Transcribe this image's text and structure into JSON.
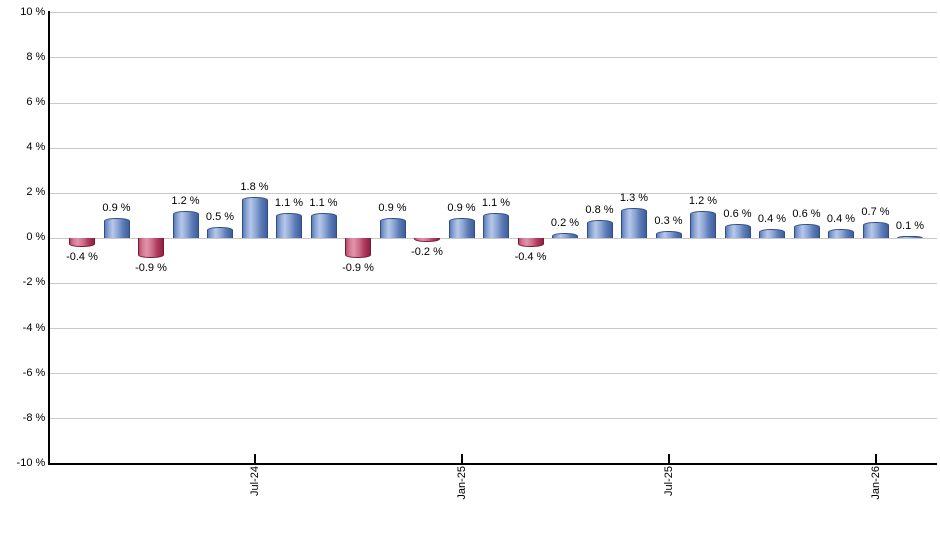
{
  "chart_data": {
    "type": "bar",
    "title": "",
    "xlabel": "",
    "ylabel": "",
    "ylim": [
      -10,
      10
    ],
    "ytick_step": 2,
    "grid": "horizontal",
    "legend": "none",
    "yticks": [
      {
        "value": 10,
        "label": "10 %"
      },
      {
        "value": 8,
        "label": "8 %"
      },
      {
        "value": 6,
        "label": "6 %"
      },
      {
        "value": 4,
        "label": "4 %"
      },
      {
        "value": 2,
        "label": "2 %"
      },
      {
        "value": 0,
        "label": "0 %"
      },
      {
        "value": -2,
        "label": "-2 %"
      },
      {
        "value": -4,
        "label": "-4 %"
      },
      {
        "value": -6,
        "label": "-6 %"
      },
      {
        "value": -8,
        "label": "-8 %"
      },
      {
        "value": -10,
        "label": "-10 %"
      }
    ],
    "xticks": [
      {
        "bar_index": 5,
        "label": "Jul-24"
      },
      {
        "bar_index": 11,
        "label": "Jan-25"
      },
      {
        "bar_index": 17,
        "label": "Jul-25"
      },
      {
        "bar_index": 23,
        "label": "Jan-26"
      }
    ],
    "bars": [
      {
        "value": -0.4,
        "label": "-0.4 %"
      },
      {
        "value": 0.9,
        "label": "0.9 %"
      },
      {
        "value": -0.9,
        "label": "-0.9 %"
      },
      {
        "value": 1.2,
        "label": "1.2 %"
      },
      {
        "value": 0.5,
        "label": "0.5 %"
      },
      {
        "value": 1.8,
        "label": "1.8 %"
      },
      {
        "value": 1.1,
        "label": "1.1 %"
      },
      {
        "value": 1.1,
        "label": "1.1 %"
      },
      {
        "value": -0.9,
        "label": "-0.9 %"
      },
      {
        "value": 0.9,
        "label": "0.9 %"
      },
      {
        "value": -0.2,
        "label": "-0.2 %"
      },
      {
        "value": 0.9,
        "label": "0.9 %"
      },
      {
        "value": 1.1,
        "label": "1.1 %"
      },
      {
        "value": -0.4,
        "label": "-0.4 %"
      },
      {
        "value": 0.2,
        "label": "0.2 %"
      },
      {
        "value": 0.8,
        "label": "0.8 %"
      },
      {
        "value": 1.3,
        "label": "1.3 %"
      },
      {
        "value": 0.3,
        "label": "0.3 %"
      },
      {
        "value": 1.2,
        "label": "1.2 %"
      },
      {
        "value": 0.6,
        "label": "0.6 %"
      },
      {
        "value": 0.4,
        "label": "0.4 %"
      },
      {
        "value": 0.6,
        "label": "0.6 %"
      },
      {
        "value": 0.4,
        "label": "0.4 %"
      },
      {
        "value": 0.7,
        "label": "0.7 %"
      },
      {
        "value": 0.1,
        "label": "0.1 %"
      }
    ],
    "colors": {
      "positive_border": "#314d82",
      "positive_gradient": [
        "#5c7eba",
        "#8ba6d6",
        "#b6c8ea",
        "#8aa3d2",
        "#5c7cb8",
        "#3e5f9d"
      ],
      "negative_border": "#771c38",
      "negative_gradient": [
        "#bb4a68",
        "#d47a93",
        "#e095ab",
        "#cc6d88",
        "#b23c5e",
        "#8f2144"
      ],
      "grid": "#c9c9c9",
      "axis": "#000000",
      "label_text": "#000000",
      "background": "#ffffff"
    }
  }
}
